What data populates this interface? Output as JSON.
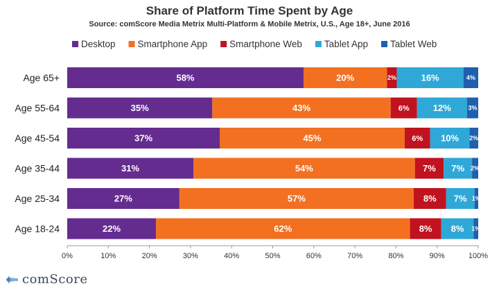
{
  "chart_data": {
    "type": "bar",
    "orientation": "horizontal",
    "stacked": true,
    "title": "Share of Platform Time Spent by Age",
    "subtitle": "Source: comScore Media Metrix Multi-Platform & Mobile Metrix, U.S., Age 18+, June 2016",
    "categories": [
      "Age 65+",
      "Age 55-64",
      "Age 45-54",
      "Age 35-44",
      "Age 25-34",
      "Age 18-24"
    ],
    "series": [
      {
        "name": "Desktop",
        "color": "#652c90",
        "values": [
          57.5,
          35.3,
          37.1,
          30.7,
          27.3,
          21.6
        ],
        "labels": [
          "58%",
          "35%",
          "37%",
          "31%",
          "27%",
          "22%"
        ]
      },
      {
        "name": "Smartphone App",
        "color": "#f37021",
        "values": [
          20.3,
          43.4,
          45.0,
          53.9,
          57.0,
          61.8
        ],
        "labels": [
          "20%",
          "43%",
          "45%",
          "54%",
          "57%",
          "62%"
        ]
      },
      {
        "name": "Smartphone Web",
        "color": "#c1121f",
        "values": [
          2.4,
          6.4,
          6.2,
          7.0,
          7.9,
          7.6
        ],
        "labels": [
          "2%",
          "6%",
          "6%",
          "7%",
          "8%",
          "8%"
        ]
      },
      {
        "name": "Tablet App",
        "color": "#2fa8d8",
        "values": [
          16.2,
          12.2,
          9.6,
          6.9,
          6.9,
          7.9
        ],
        "labels": [
          "16%",
          "12%",
          "10%",
          "7%",
          "7%",
          "8%"
        ]
      },
      {
        "name": "Tablet Web",
        "color": "#1f5fae",
        "values": [
          3.6,
          2.7,
          2.1,
          1.5,
          0.9,
          1.1
        ],
        "labels": [
          "4%",
          "3%",
          "2%",
          "2%",
          "1%",
          "1%"
        ]
      }
    ],
    "xlim": [
      0,
      100
    ],
    "xticks": [
      "0%",
      "10%",
      "20%",
      "30%",
      "40%",
      "50%",
      "60%",
      "70%",
      "80%",
      "90%",
      "100%"
    ],
    "legend_position": "top"
  },
  "branding": {
    "logo_text": "comScore"
  }
}
